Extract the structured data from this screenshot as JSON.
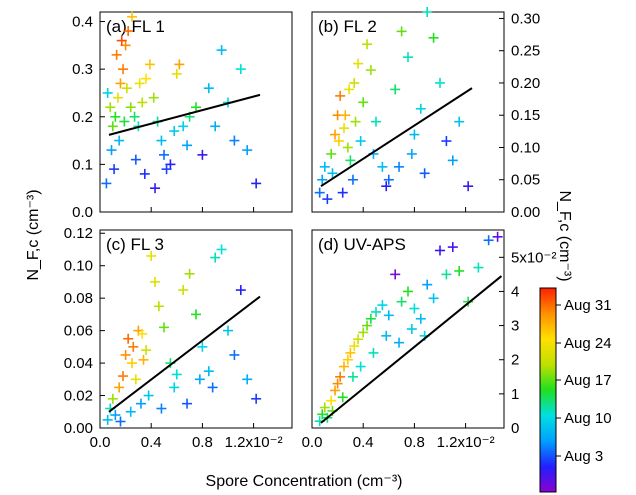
{
  "chart_data": {
    "type": "scatter",
    "xlabel": "Spore Concentration (cm⁻³)",
    "xlim": [
      0,
      0.015
    ],
    "xticks": [
      {
        "value": 0.0,
        "label": "0.0"
      },
      {
        "value": 0.004,
        "label": "0.4"
      },
      {
        "value": 0.008,
        "label": "0.8"
      },
      {
        "value": 0.012,
        "label": "1.2x10⁻²"
      }
    ],
    "ylabel_left": "N_F,c (cm⁻³)",
    "ylabel_right": "N_F,c (cm⁻³)",
    "colorbar": {
      "ticks": [
        "Aug 31",
        "Aug 24",
        "Aug 17",
        "Aug 10",
        "Aug 3"
      ],
      "colors": [
        "#8a00d0",
        "#2020ff",
        "#00a0ff",
        "#00e0e0",
        "#20e020",
        "#c0e000",
        "#ffe000",
        "#ff9000",
        "#ff2000"
      ]
    },
    "panels": [
      {
        "label": "(a) FL 1",
        "ylim": [
          0,
          0.42
        ],
        "yticks": [
          "0.0",
          "0.1",
          "0.2",
          "0.3",
          "0.4"
        ],
        "yticks_side": "left",
        "fit": [
          [
            0.0007,
            0.162
          ],
          [
            0.0125,
            0.246
          ]
        ],
        "points": [
          [
            0.0006,
            0.25,
            0.35
          ],
          [
            0.0008,
            0.22,
            0.6
          ],
          [
            0.001,
            0.18,
            0.55
          ],
          [
            0.0012,
            0.2,
            0.5
          ],
          [
            0.0009,
            0.13,
            0.25
          ],
          [
            0.0011,
            0.09,
            0.15
          ],
          [
            0.0005,
            0.06,
            0.2
          ],
          [
            0.0014,
            0.24,
            0.7
          ],
          [
            0.0016,
            0.27,
            0.85
          ],
          [
            0.0018,
            0.3,
            0.9
          ],
          [
            0.002,
            0.35,
            0.88
          ],
          [
            0.0022,
            0.38,
            0.92
          ],
          [
            0.0025,
            0.41,
            0.8
          ],
          [
            0.0017,
            0.36,
            0.95
          ],
          [
            0.0013,
            0.33,
            0.9
          ],
          [
            0.0021,
            0.26,
            0.65
          ],
          [
            0.0024,
            0.22,
            0.58
          ],
          [
            0.0027,
            0.2,
            0.45
          ],
          [
            0.003,
            0.18,
            0.4
          ],
          [
            0.0033,
            0.23,
            0.62
          ],
          [
            0.0036,
            0.28,
            0.75
          ],
          [
            0.0039,
            0.31,
            0.8
          ],
          [
            0.0042,
            0.24,
            0.6
          ],
          [
            0.0045,
            0.19,
            0.42
          ],
          [
            0.0048,
            0.15,
            0.3
          ],
          [
            0.005,
            0.12,
            0.2
          ],
          [
            0.0055,
            0.1,
            0.12
          ],
          [
            0.006,
            0.29,
            0.7
          ],
          [
            0.0062,
            0.31,
            0.85
          ],
          [
            0.0065,
            0.18,
            0.35
          ],
          [
            0.0068,
            0.14,
            0.25
          ],
          [
            0.007,
            0.2,
            0.45
          ],
          [
            0.0075,
            0.22,
            0.5
          ],
          [
            0.008,
            0.12,
            0.1
          ],
          [
            0.0085,
            0.26,
            0.3
          ],
          [
            0.009,
            0.18,
            0.28
          ],
          [
            0.0095,
            0.34,
            0.3
          ],
          [
            0.01,
            0.23,
            0.35
          ],
          [
            0.0105,
            0.15,
            0.22
          ],
          [
            0.011,
            0.3,
            0.38
          ],
          [
            0.0115,
            0.13,
            0.25
          ],
          [
            0.0122,
            0.06,
            0.12
          ],
          [
            0.0015,
            0.15,
            0.3
          ],
          [
            0.0028,
            0.11,
            0.18
          ],
          [
            0.0035,
            0.08,
            0.14
          ],
          [
            0.0043,
            0.05,
            0.1
          ],
          [
            0.0052,
            0.09,
            0.16
          ],
          [
            0.0058,
            0.17,
            0.33
          ],
          [
            0.0031,
            0.27,
            0.72
          ],
          [
            0.0019,
            0.19,
            0.48
          ]
        ]
      },
      {
        "label": "(b) FL 2",
        "ylim": [
          0,
          0.31
        ],
        "yticks": [
          "0.00",
          "0.05",
          "0.10",
          "0.15",
          "0.20",
          "0.25",
          "0.30"
        ],
        "yticks_side": "right",
        "fit": [
          [
            0.0007,
            0.04
          ],
          [
            0.0125,
            0.192
          ]
        ],
        "points": [
          [
            0.0006,
            0.03,
            0.2
          ],
          [
            0.0008,
            0.05,
            0.25
          ],
          [
            0.001,
            0.07,
            0.3
          ],
          [
            0.0012,
            0.02,
            0.15
          ],
          [
            0.0015,
            0.09,
            0.55
          ],
          [
            0.0018,
            0.12,
            0.85
          ],
          [
            0.002,
            0.15,
            0.88
          ],
          [
            0.0022,
            0.18,
            0.9
          ],
          [
            0.0025,
            0.13,
            0.7
          ],
          [
            0.0028,
            0.1,
            0.6
          ],
          [
            0.003,
            0.08,
            0.45
          ],
          [
            0.0033,
            0.2,
            0.65
          ],
          [
            0.0036,
            0.23,
            0.7
          ],
          [
            0.004,
            0.17,
            0.55
          ],
          [
            0.0043,
            0.26,
            0.62
          ],
          [
            0.0046,
            0.22,
            0.6
          ],
          [
            0.005,
            0.14,
            0.4
          ],
          [
            0.0055,
            0.07,
            0.3
          ],
          [
            0.006,
            0.05,
            0.2
          ],
          [
            0.0065,
            0.19,
            0.45
          ],
          [
            0.007,
            0.28,
            0.55
          ],
          [
            0.0075,
            0.24,
            0.4
          ],
          [
            0.008,
            0.12,
            0.3
          ],
          [
            0.0085,
            0.16,
            0.35
          ],
          [
            0.009,
            0.31,
            0.4
          ],
          [
            0.0095,
            0.27,
            0.5
          ],
          [
            0.01,
            0.2,
            0.38
          ],
          [
            0.0105,
            0.11,
            0.15
          ],
          [
            0.011,
            0.08,
            0.25
          ],
          [
            0.0115,
            0.14,
            0.32
          ],
          [
            0.0122,
            0.04,
            0.1
          ],
          [
            0.0016,
            0.06,
            0.3
          ],
          [
            0.0024,
            0.03,
            0.14
          ],
          [
            0.0032,
            0.05,
            0.2
          ],
          [
            0.0038,
            0.11,
            0.33
          ],
          [
            0.0048,
            0.09,
            0.28
          ],
          [
            0.0058,
            0.04,
            0.12
          ],
          [
            0.0068,
            0.07,
            0.22
          ],
          [
            0.0078,
            0.09,
            0.27
          ],
          [
            0.0088,
            0.06,
            0.18
          ],
          [
            0.0021,
            0.11,
            0.78
          ],
          [
            0.0026,
            0.15,
            0.82
          ],
          [
            0.0029,
            0.19,
            0.72
          ],
          [
            0.0034,
            0.14,
            0.6
          ]
        ]
      },
      {
        "label": "(c) FL 3",
        "ylim": [
          0,
          0.122
        ],
        "yticks": [
          "0.00",
          "0.02",
          "0.04",
          "0.06",
          "0.08",
          "0.10",
          "0.12"
        ],
        "yticks_side": "left",
        "fit": [
          [
            0.0007,
            0.01
          ],
          [
            0.0125,
            0.081
          ]
        ],
        "points": [
          [
            0.0006,
            0.005,
            0.3
          ],
          [
            0.0008,
            0.012,
            0.4
          ],
          [
            0.001,
            0.018,
            0.6
          ],
          [
            0.0012,
            0.008,
            0.25
          ],
          [
            0.0015,
            0.025,
            0.85
          ],
          [
            0.0018,
            0.032,
            0.9
          ],
          [
            0.002,
            0.045,
            0.88
          ],
          [
            0.0022,
            0.055,
            0.92
          ],
          [
            0.0025,
            0.04,
            0.78
          ],
          [
            0.0028,
            0.03,
            0.7
          ],
          [
            0.003,
            0.06,
            0.85
          ],
          [
            0.0033,
            0.058,
            0.75
          ],
          [
            0.0036,
            0.048,
            0.65
          ],
          [
            0.004,
            0.106,
            0.7
          ],
          [
            0.0043,
            0.09,
            0.68
          ],
          [
            0.0046,
            0.075,
            0.62
          ],
          [
            0.005,
            0.062,
            0.55
          ],
          [
            0.0055,
            0.04,
            0.45
          ],
          [
            0.006,
            0.033,
            0.38
          ],
          [
            0.0065,
            0.085,
            0.65
          ],
          [
            0.007,
            0.095,
            0.6
          ],
          [
            0.0075,
            0.07,
            0.5
          ],
          [
            0.008,
            0.05,
            0.35
          ],
          [
            0.0085,
            0.035,
            0.3
          ],
          [
            0.009,
            0.105,
            0.4
          ],
          [
            0.0095,
            0.11,
            0.38
          ],
          [
            0.01,
            0.06,
            0.32
          ],
          [
            0.0105,
            0.045,
            0.2
          ],
          [
            0.011,
            0.085,
            0.12
          ],
          [
            0.0115,
            0.03,
            0.28
          ],
          [
            0.0122,
            0.018,
            0.15
          ],
          [
            0.0016,
            0.004,
            0.2
          ],
          [
            0.0024,
            0.01,
            0.3
          ],
          [
            0.0032,
            0.015,
            0.25
          ],
          [
            0.0038,
            0.02,
            0.32
          ],
          [
            0.0048,
            0.012,
            0.22
          ],
          [
            0.0058,
            0.025,
            0.35
          ],
          [
            0.0068,
            0.015,
            0.18
          ],
          [
            0.0078,
            0.03,
            0.27
          ],
          [
            0.0088,
            0.025,
            0.2
          ],
          [
            0.0026,
            0.05,
            0.9
          ],
          [
            0.0034,
            0.042,
            0.82
          ]
        ]
      },
      {
        "label": "(d) UV-APS",
        "ylim": [
          0,
          0.058
        ],
        "yticks": [
          "0",
          "1",
          "2",
          "3",
          "4",
          "5x10⁻²"
        ],
        "yticks_side": "right",
        "fit": [
          [
            0.0007,
            0.0015
          ],
          [
            0.0148,
            0.0445
          ]
        ],
        "points": [
          [
            0.0006,
            0.002,
            0.4
          ],
          [
            0.0008,
            0.004,
            0.5
          ],
          [
            0.001,
            0.006,
            0.6
          ],
          [
            0.0012,
            0.003,
            0.45
          ],
          [
            0.0015,
            0.008,
            0.75
          ],
          [
            0.0018,
            0.011,
            0.85
          ],
          [
            0.002,
            0.013,
            0.88
          ],
          [
            0.0022,
            0.015,
            0.9
          ],
          [
            0.0025,
            0.018,
            0.82
          ],
          [
            0.0028,
            0.02,
            0.78
          ],
          [
            0.003,
            0.022,
            0.8
          ],
          [
            0.0033,
            0.024,
            0.72
          ],
          [
            0.0036,
            0.026,
            0.65
          ],
          [
            0.004,
            0.028,
            0.6
          ],
          [
            0.0043,
            0.03,
            0.55
          ],
          [
            0.0046,
            0.032,
            0.48
          ],
          [
            0.005,
            0.034,
            0.4
          ],
          [
            0.0055,
            0.036,
            0.35
          ],
          [
            0.006,
            0.033,
            0.3
          ],
          [
            0.0065,
            0.045,
            0.02
          ],
          [
            0.007,
            0.037,
            0.45
          ],
          [
            0.0075,
            0.04,
            0.5
          ],
          [
            0.008,
            0.035,
            0.38
          ],
          [
            0.0085,
            0.032,
            0.3
          ],
          [
            0.009,
            0.042,
            0.25
          ],
          [
            0.0095,
            0.038,
            0.32
          ],
          [
            0.01,
            0.052,
            0.1
          ],
          [
            0.0105,
            0.045,
            0.42
          ],
          [
            0.011,
            0.053,
            0.08
          ],
          [
            0.0115,
            0.046,
            0.5
          ],
          [
            0.0122,
            0.037,
            0.48
          ],
          [
            0.013,
            0.047,
            0.4
          ],
          [
            0.0138,
            0.055,
            0.2
          ],
          [
            0.0145,
            0.056,
            0.05
          ],
          [
            0.0016,
            0.005,
            0.55
          ],
          [
            0.0024,
            0.009,
            0.5
          ],
          [
            0.0032,
            0.015,
            0.42
          ],
          [
            0.0038,
            0.018,
            0.38
          ],
          [
            0.0048,
            0.022,
            0.4
          ],
          [
            0.0058,
            0.027,
            0.3
          ],
          [
            0.0068,
            0.025,
            0.28
          ],
          [
            0.0078,
            0.029,
            0.33
          ],
          [
            0.0088,
            0.027,
            0.35
          ]
        ]
      }
    ]
  }
}
